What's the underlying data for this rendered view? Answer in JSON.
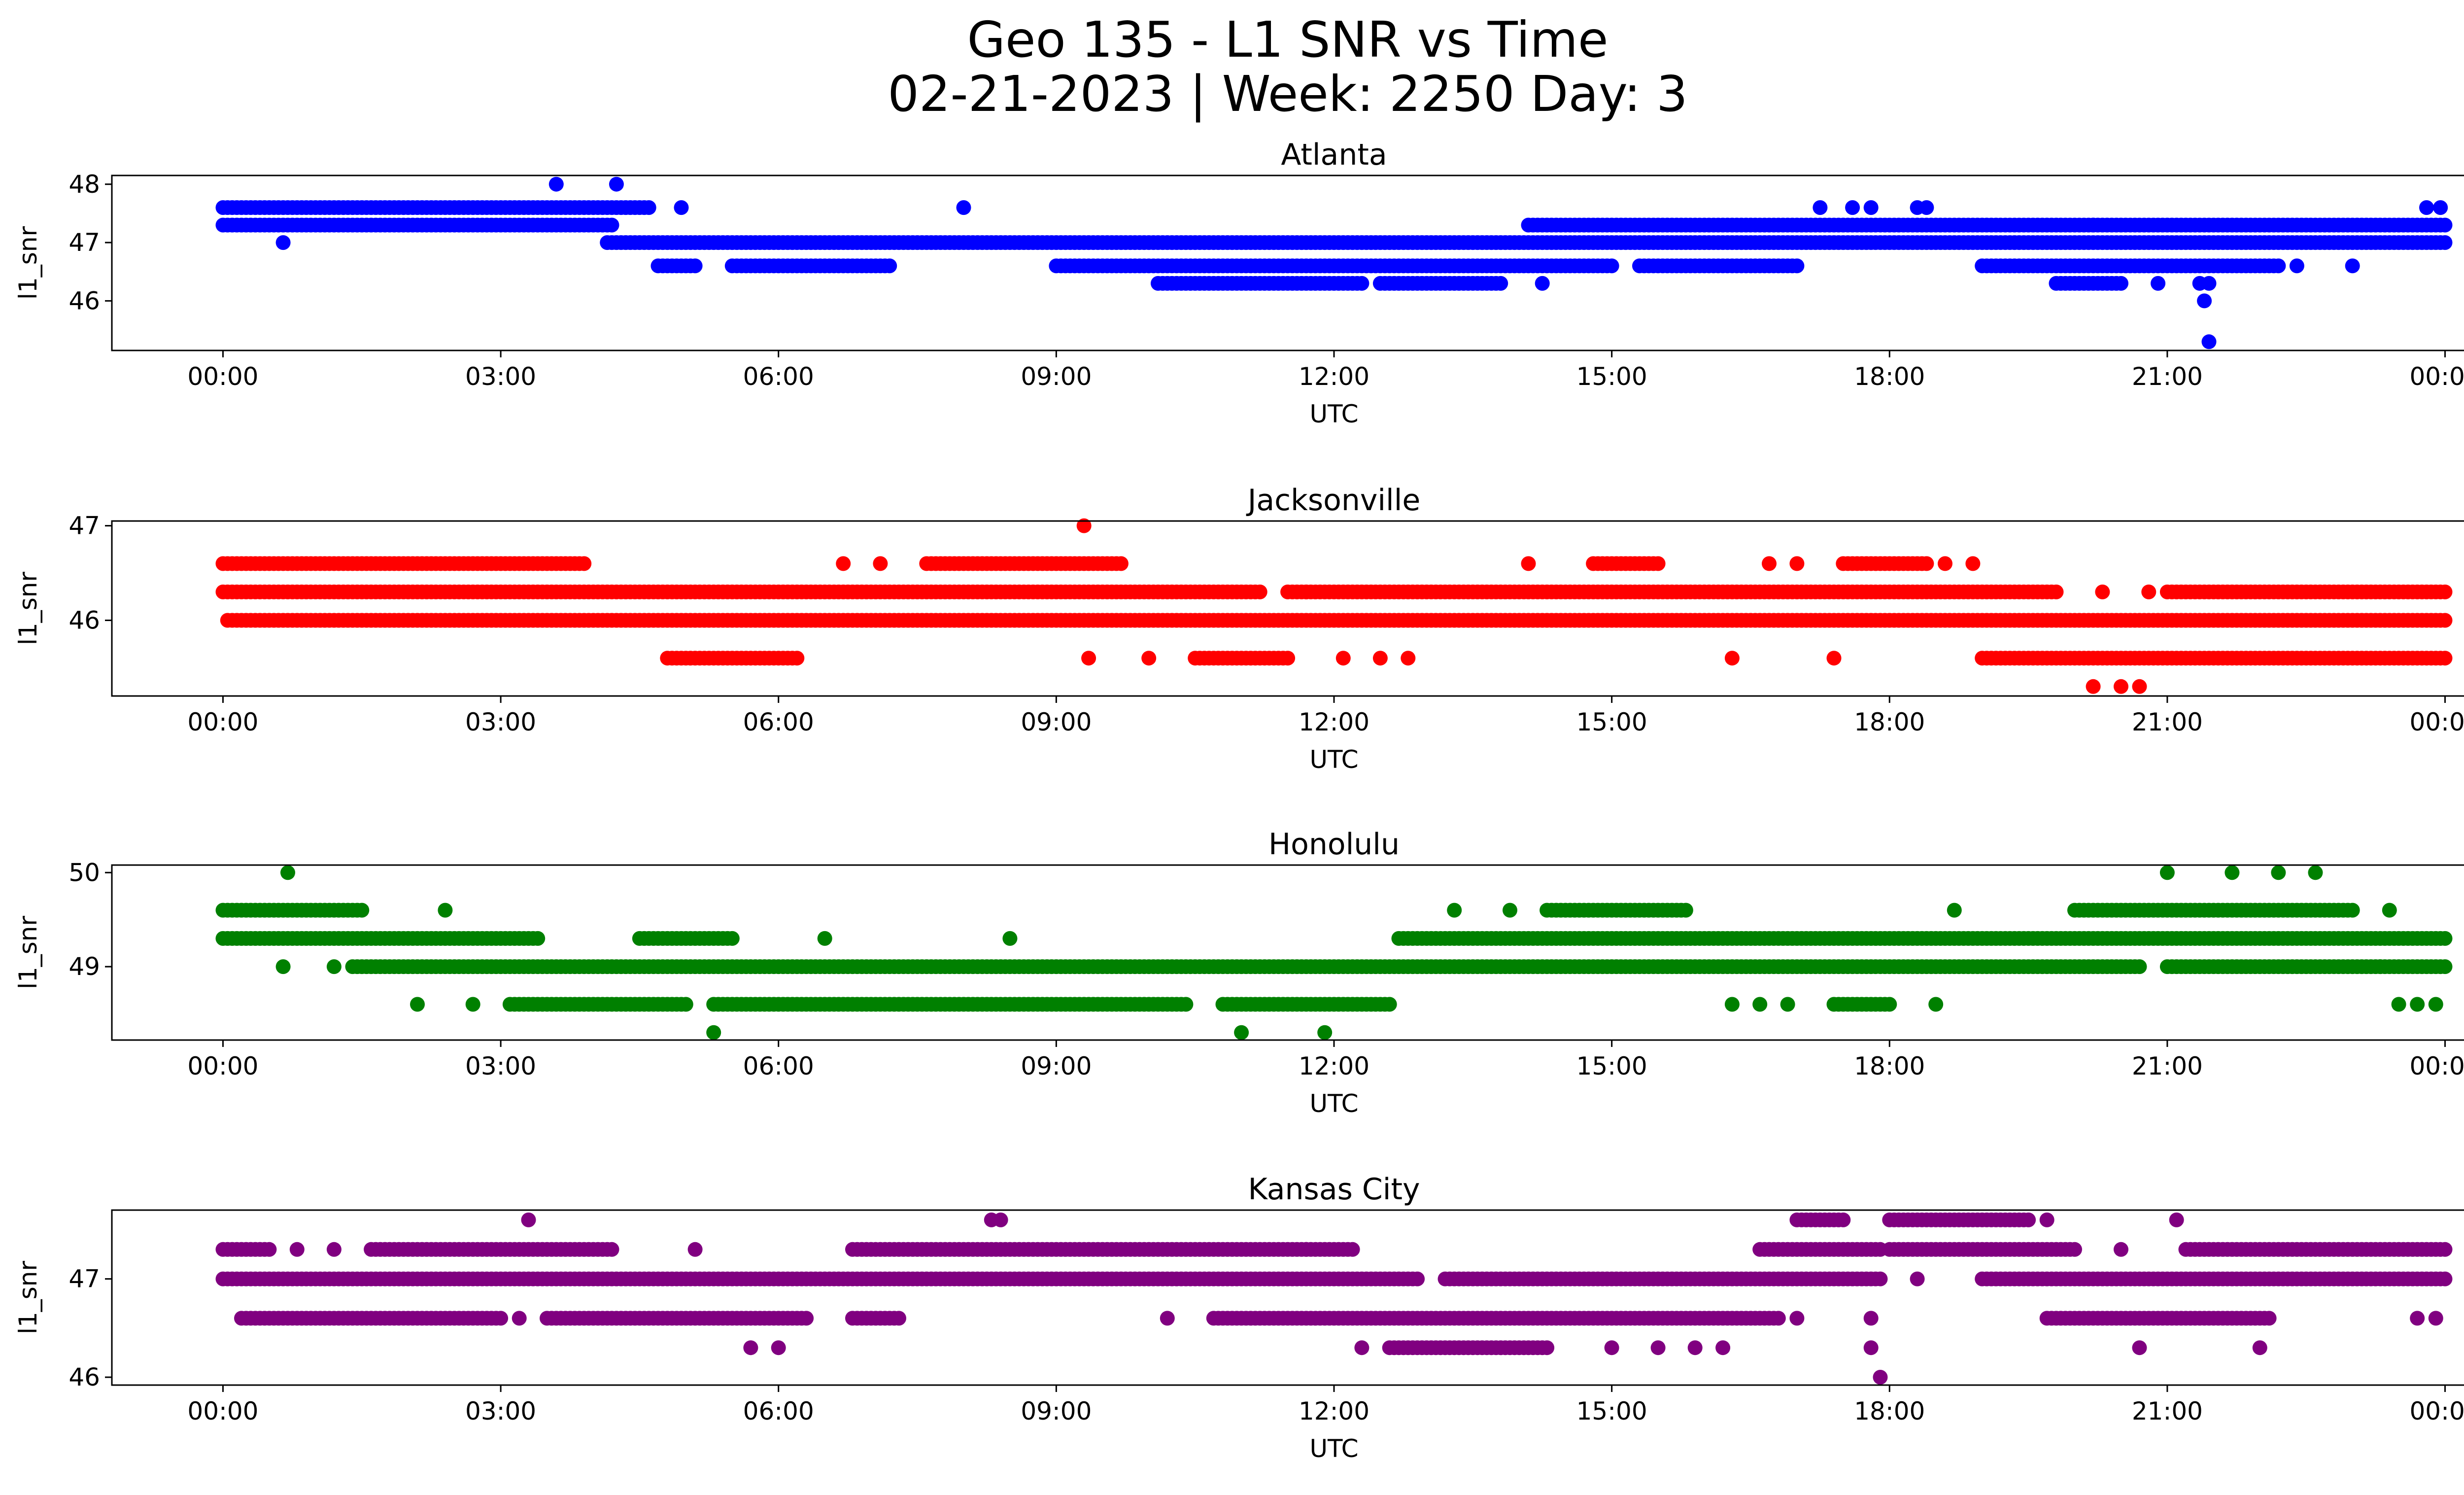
{
  "figure": {
    "title_line1": "Geo 135 - L1 SNR vs Time",
    "title_line2": "02-21-2023 | Week: 2250 Day: 3"
  },
  "chart_data": [
    {
      "type": "scatter",
      "title": "Atlanta",
      "xlabel": "UTC",
      "ylabel": "l1_snr",
      "color": "#0000ff",
      "xlim": [
        "2023-02-20 22:48",
        "2023-02-22 01:12"
      ],
      "ylim": [
        45.15,
        48.15
      ],
      "xticks": [
        "00:00",
        "03:00",
        "06:00",
        "09:00",
        "12:00",
        "15:00",
        "18:00",
        "21:00",
        "00:00"
      ],
      "yticks": [
        46,
        47,
        48
      ],
      "x_unit": "hours UTC",
      "bands": [
        {
          "y": 47.6,
          "x": [
            [
              0.0,
              4.6
            ]
          ]
        },
        {
          "y": 47.3,
          "x": [
            [
              0.0,
              4.2
            ],
            [
              14.1,
              24.0
            ]
          ]
        },
        {
          "y": 47.0,
          "x": [
            [
              4.15,
              24.0
            ]
          ]
        },
        {
          "y": 46.6,
          "x": [
            [
              4.7,
              5.1
            ],
            [
              5.5,
              7.2
            ],
            [
              9.0,
              15.0
            ],
            [
              15.3,
              17.0
            ],
            [
              19.0,
              22.2
            ]
          ]
        },
        {
          "y": 46.3,
          "x": [
            [
              10.1,
              12.3
            ],
            [
              12.5,
              13.8
            ],
            [
              19.8,
              20.5
            ]
          ]
        }
      ],
      "points": [
        [
          0.65,
          47.0
        ],
        [
          3.6,
          48.0
        ],
        [
          4.25,
          48.0
        ],
        [
          4.95,
          47.6
        ],
        [
          8.0,
          47.6
        ],
        [
          14.25,
          46.3
        ],
        [
          17.25,
          47.6
        ],
        [
          17.6,
          47.6
        ],
        [
          17.8,
          47.6
        ],
        [
          18.3,
          47.6
        ],
        [
          18.4,
          47.6
        ],
        [
          20.2,
          47.3
        ],
        [
          20.9,
          46.3
        ],
        [
          21.35,
          46.3
        ],
        [
          21.45,
          46.3
        ],
        [
          21.4,
          46.0
        ],
        [
          21.45,
          45.3
        ],
        [
          22.4,
          46.6
        ],
        [
          23.0,
          46.6
        ],
        [
          23.8,
          47.6
        ],
        [
          23.95,
          47.6
        ]
      ]
    },
    {
      "type": "scatter",
      "title": "Jacksonville",
      "xlabel": "UTC",
      "ylabel": "l1_snr",
      "color": "#ff0000",
      "xlim": [
        "2023-02-20 22:48",
        "2023-02-22 01:12"
      ],
      "ylim": [
        45.2,
        47.05
      ],
      "xticks": [
        "00:00",
        "03:00",
        "06:00",
        "09:00",
        "12:00",
        "15:00",
        "18:00",
        "21:00",
        "00:00"
      ],
      "yticks": [
        46,
        47
      ],
      "x_unit": "hours UTC",
      "bands": [
        {
          "y": 46.6,
          "x": [
            [
              0.0,
              3.9
            ],
            [
              7.6,
              9.7
            ],
            [
              14.8,
              15.5
            ],
            [
              17.5,
              18.4
            ]
          ]
        },
        {
          "y": 46.3,
          "x": [
            [
              0.0,
              11.2
            ],
            [
              11.5,
              19.8
            ],
            [
              21.0,
              24.0
            ]
          ]
        },
        {
          "y": 46.0,
          "x": [
            [
              0.05,
              24.0
            ]
          ]
        },
        {
          "y": 45.6,
          "x": [
            [
              4.8,
              6.2
            ],
            [
              10.5,
              11.5
            ],
            [
              19.0,
              24.0
            ]
          ]
        }
      ],
      "points": [
        [
          6.7,
          46.6
        ],
        [
          7.1,
          46.6
        ],
        [
          9.3,
          47.0
        ],
        [
          9.35,
          45.6
        ],
        [
          10.0,
          45.6
        ],
        [
          11.7,
          46.3
        ],
        [
          12.1,
          45.6
        ],
        [
          12.5,
          45.6
        ],
        [
          12.8,
          45.6
        ],
        [
          14.1,
          46.6
        ],
        [
          16.3,
          45.6
        ],
        [
          16.7,
          46.6
        ],
        [
          17.0,
          46.6
        ],
        [
          17.4,
          45.6
        ],
        [
          18.6,
          46.6
        ],
        [
          18.9,
          46.6
        ],
        [
          20.2,
          45.3
        ],
        [
          20.5,
          45.3
        ],
        [
          20.7,
          45.3
        ],
        [
          20.3,
          46.3
        ],
        [
          20.8,
          46.3
        ]
      ]
    },
    {
      "type": "scatter",
      "title": "Honolulu",
      "xlabel": "UTC",
      "ylabel": "l1_snr",
      "color": "#008000",
      "xlim": [
        "2023-02-20 22:48",
        "2023-02-22 01:12"
      ],
      "ylim": [
        48.22,
        50.08
      ],
      "xticks": [
        "00:00",
        "03:00",
        "06:00",
        "09:00",
        "12:00",
        "15:00",
        "18:00",
        "21:00",
        "00:00"
      ],
      "yticks": [
        49,
        50
      ],
      "x_unit": "hours UTC",
      "bands": [
        {
          "y": 49.6,
          "x": [
            [
              0.0,
              1.5
            ],
            [
              14.3,
              15.8
            ],
            [
              20.0,
              23.0
            ]
          ]
        },
        {
          "y": 49.3,
          "x": [
            [
              0.0,
              3.4
            ],
            [
              4.5,
              5.5
            ],
            [
              12.7,
              24.0
            ]
          ]
        },
        {
          "y": 49.0,
          "x": [
            [
              1.4,
              20.7
            ],
            [
              21.0,
              24.0
            ]
          ]
        },
        {
          "y": 48.6,
          "x": [
            [
              3.1,
              5.0
            ],
            [
              5.3,
              10.4
            ],
            [
              10.8,
              12.6
            ],
            [
              17.4,
              18.0
            ]
          ]
        }
      ],
      "points": [
        [
          0.7,
          50.0
        ],
        [
          0.65,
          49.0
        ],
        [
          1.2,
          49.0
        ],
        [
          2.1,
          48.6
        ],
        [
          2.4,
          49.6
        ],
        [
          2.7,
          48.6
        ],
        [
          5.3,
          48.3
        ],
        [
          6.5,
          49.3
        ],
        [
          8.5,
          49.3
        ],
        [
          11.0,
          48.3
        ],
        [
          11.9,
          48.3
        ],
        [
          13.3,
          49.6
        ],
        [
          13.9,
          49.6
        ],
        [
          16.3,
          48.6
        ],
        [
          16.6,
          48.6
        ],
        [
          16.9,
          48.6
        ],
        [
          18.5,
          48.6
        ],
        [
          18.7,
          49.6
        ],
        [
          21.0,
          50.0
        ],
        [
          21.7,
          50.0
        ],
        [
          22.2,
          50.0
        ],
        [
          22.6,
          50.0
        ],
        [
          23.3,
          49.0
        ],
        [
          23.4,
          49.6
        ],
        [
          23.5,
          48.6
        ],
        [
          23.7,
          48.6
        ],
        [
          23.9,
          48.6
        ]
      ]
    },
    {
      "type": "scatter",
      "title": "Kansas City",
      "xlabel": "UTC",
      "ylabel": "l1_snr",
      "color": "#800080",
      "xlim": [
        "2023-02-20 22:48",
        "2023-02-22 01:12"
      ],
      "ylim": [
        45.92,
        47.7
      ],
      "xticks": [
        "00:00",
        "03:00",
        "06:00",
        "09:00",
        "12:00",
        "15:00",
        "18:00",
        "21:00",
        "00:00"
      ],
      "yticks": [
        46,
        47
      ],
      "x_unit": "hours UTC",
      "bands": [
        {
          "y": 47.6,
          "x": [
            [
              17.0,
              17.5
            ],
            [
              18.0,
              19.5
            ]
          ]
        },
        {
          "y": 47.3,
          "x": [
            [
              0.0,
              0.5
            ],
            [
              1.6,
              4.2
            ],
            [
              6.8,
              12.2
            ],
            [
              16.6,
              17.9
            ],
            [
              18.0,
              20.0
            ],
            [
              21.2,
              24.0
            ]
          ]
        },
        {
          "y": 47.0,
          "x": [
            [
              0.0,
              12.9
            ],
            [
              13.2,
              17.9
            ],
            [
              19.0,
              24.0
            ]
          ]
        },
        {
          "y": 46.6,
          "x": [
            [
              0.2,
              3.0
            ],
            [
              3.5,
              6.3
            ],
            [
              6.8,
              7.3
            ],
            [
              10.7,
              16.8
            ],
            [
              19.7,
              22.1
            ]
          ]
        },
        {
          "y": 46.3,
          "x": [
            [
              12.6,
              14.3
            ]
          ]
        }
      ],
      "points": [
        [
          0.8,
          47.3
        ],
        [
          1.2,
          47.3
        ],
        [
          3.3,
          47.6
        ],
        [
          3.2,
          46.6
        ],
        [
          5.1,
          47.3
        ],
        [
          5.7,
          46.3
        ],
        [
          6.0,
          46.3
        ],
        [
          8.3,
          47.6
        ],
        [
          8.4,
          47.6
        ],
        [
          10.2,
          46.6
        ],
        [
          11.7,
          47.3
        ],
        [
          12.3,
          46.3
        ],
        [
          15.0,
          46.3
        ],
        [
          15.5,
          46.3
        ],
        [
          15.9,
          46.3
        ],
        [
          16.2,
          46.3
        ],
        [
          17.0,
          46.6
        ],
        [
          18.3,
          47.0
        ],
        [
          17.8,
          46.3
        ],
        [
          17.8,
          46.6
        ],
        [
          17.9,
          46.0
        ],
        [
          19.7,
          47.6
        ],
        [
          20.5,
          47.3
        ],
        [
          20.7,
          46.3
        ],
        [
          21.1,
          47.6
        ],
        [
          22.0,
          46.3
        ],
        [
          23.7,
          46.6
        ],
        [
          23.9,
          46.6
        ]
      ]
    }
  ]
}
